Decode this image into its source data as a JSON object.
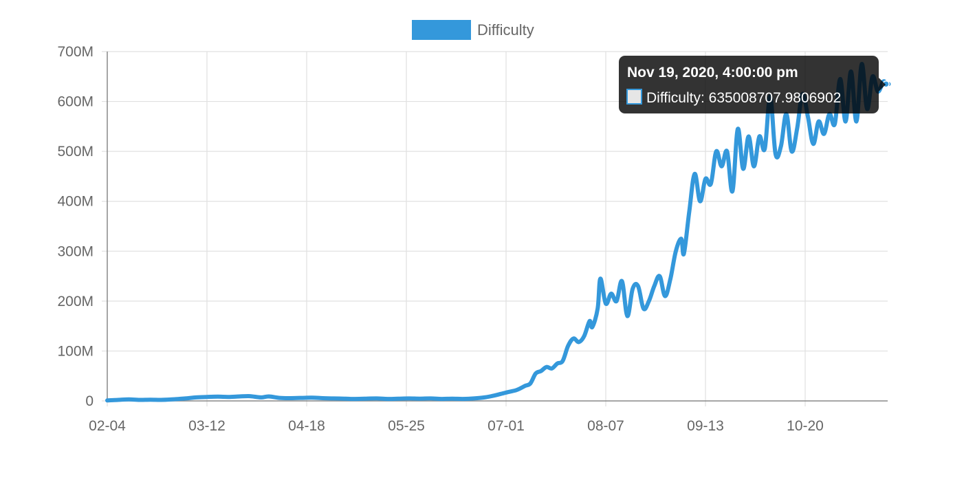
{
  "legend": {
    "label": "Difficulty",
    "color": "#3498db"
  },
  "tooltip": {
    "title": "Nov 19, 2020, 4:00:00 pm",
    "body": "Difficulty: 635008707.9806902",
    "swatch_fill": "#e6e6e6",
    "swatch_border": "#3498db",
    "background": "rgba(0,0,0,0.8)"
  },
  "chart_data": {
    "type": "line",
    "title": "",
    "xlabel": "",
    "ylabel": "",
    "x_tick_labels": [
      "02-04",
      "03-12",
      "04-18",
      "05-25",
      "07-01",
      "08-07",
      "09-13",
      "10-20"
    ],
    "y_tick_labels": [
      "0",
      "100M",
      "200M",
      "300M",
      "400M",
      "500M",
      "600M",
      "700M"
    ],
    "ylim": [
      0,
      700000000
    ],
    "grid": true,
    "legend_position": "top",
    "series": [
      {
        "name": "Difficulty",
        "color": "#3498db",
        "points": [
          [
            "2020-02-04",
            1000000
          ],
          [
            "2020-02-08",
            2000000
          ],
          [
            "2020-02-12",
            3000000
          ],
          [
            "2020-02-16",
            2000000
          ],
          [
            "2020-02-20",
            2500000
          ],
          [
            "2020-02-24",
            2000000
          ],
          [
            "2020-02-28",
            3000000
          ],
          [
            "2020-03-04",
            5000000
          ],
          [
            "2020-03-08",
            7000000
          ],
          [
            "2020-03-12",
            8000000
          ],
          [
            "2020-03-16",
            8500000
          ],
          [
            "2020-03-20",
            8000000
          ],
          [
            "2020-03-24",
            9000000
          ],
          [
            "2020-03-28",
            9500000
          ],
          [
            "2020-04-01",
            7000000
          ],
          [
            "2020-04-04",
            9000000
          ],
          [
            "2020-04-08",
            6000000
          ],
          [
            "2020-04-12",
            5500000
          ],
          [
            "2020-04-16",
            6000000
          ],
          [
            "2020-04-20",
            6500000
          ],
          [
            "2020-04-24",
            5500000
          ],
          [
            "2020-04-28",
            5000000
          ],
          [
            "2020-05-02",
            4500000
          ],
          [
            "2020-05-06",
            4000000
          ],
          [
            "2020-05-10",
            4500000
          ],
          [
            "2020-05-14",
            5000000
          ],
          [
            "2020-05-18",
            4000000
          ],
          [
            "2020-05-22",
            4500000
          ],
          [
            "2020-05-26",
            5000000
          ],
          [
            "2020-05-30",
            4500000
          ],
          [
            "2020-06-03",
            5000000
          ],
          [
            "2020-06-07",
            4000000
          ],
          [
            "2020-06-11",
            4500000
          ],
          [
            "2020-06-15",
            4000000
          ],
          [
            "2020-06-19",
            5000000
          ],
          [
            "2020-06-23",
            7000000
          ],
          [
            "2020-06-26",
            10000000
          ],
          [
            "2020-06-29",
            14000000
          ],
          [
            "2020-07-02",
            18000000
          ],
          [
            "2020-07-05",
            22000000
          ],
          [
            "2020-07-08",
            30000000
          ],
          [
            "2020-07-10",
            35000000
          ],
          [
            "2020-07-12",
            55000000
          ],
          [
            "2020-07-14",
            60000000
          ],
          [
            "2020-07-16",
            68000000
          ],
          [
            "2020-07-18",
            65000000
          ],
          [
            "2020-07-20",
            75000000
          ],
          [
            "2020-07-22",
            80000000
          ],
          [
            "2020-07-24",
            110000000
          ],
          [
            "2020-07-26",
            125000000
          ],
          [
            "2020-07-28",
            118000000
          ],
          [
            "2020-07-30",
            130000000
          ],
          [
            "2020-08-01",
            160000000
          ],
          [
            "2020-08-02",
            148000000
          ],
          [
            "2020-08-04",
            185000000
          ],
          [
            "2020-08-05",
            245000000
          ],
          [
            "2020-08-07",
            195000000
          ],
          [
            "2020-08-09",
            215000000
          ],
          [
            "2020-08-11",
            200000000
          ],
          [
            "2020-08-13",
            240000000
          ],
          [
            "2020-08-15",
            170000000
          ],
          [
            "2020-08-17",
            225000000
          ],
          [
            "2020-08-19",
            230000000
          ],
          [
            "2020-08-21",
            185000000
          ],
          [
            "2020-08-23",
            200000000
          ],
          [
            "2020-08-25",
            230000000
          ],
          [
            "2020-08-27",
            250000000
          ],
          [
            "2020-08-29",
            210000000
          ],
          [
            "2020-08-31",
            245000000
          ],
          [
            "2020-09-02",
            300000000
          ],
          [
            "2020-09-04",
            325000000
          ],
          [
            "2020-09-05",
            295000000
          ],
          [
            "2020-09-07",
            380000000
          ],
          [
            "2020-09-09",
            455000000
          ],
          [
            "2020-09-11",
            400000000
          ],
          [
            "2020-09-13",
            445000000
          ],
          [
            "2020-09-15",
            435000000
          ],
          [
            "2020-09-17",
            500000000
          ],
          [
            "2020-09-19",
            470000000
          ],
          [
            "2020-09-21",
            500000000
          ],
          [
            "2020-09-23",
            420000000
          ],
          [
            "2020-09-25",
            545000000
          ],
          [
            "2020-09-27",
            465000000
          ],
          [
            "2020-09-29",
            530000000
          ],
          [
            "2020-10-01",
            470000000
          ],
          [
            "2020-10-03",
            530000000
          ],
          [
            "2020-10-05",
            505000000
          ],
          [
            "2020-10-07",
            610000000
          ],
          [
            "2020-10-09",
            495000000
          ],
          [
            "2020-10-11",
            510000000
          ],
          [
            "2020-10-13",
            575000000
          ],
          [
            "2020-10-15",
            500000000
          ],
          [
            "2020-10-17",
            545000000
          ],
          [
            "2020-10-19",
            615000000
          ],
          [
            "2020-10-21",
            570000000
          ],
          [
            "2020-10-23",
            515000000
          ],
          [
            "2020-10-25",
            560000000
          ],
          [
            "2020-10-27",
            535000000
          ],
          [
            "2020-10-29",
            575000000
          ],
          [
            "2020-10-31",
            555000000
          ],
          [
            "2020-11-02",
            645000000
          ],
          [
            "2020-11-04",
            560000000
          ],
          [
            "2020-11-06",
            660000000
          ],
          [
            "2020-11-08",
            560000000
          ],
          [
            "2020-11-10",
            675000000
          ],
          [
            "2020-11-12",
            585000000
          ],
          [
            "2020-11-14",
            650000000
          ],
          [
            "2020-11-16",
            620000000
          ],
          [
            "2020-11-18",
            640000000
          ],
          [
            "2020-11-19",
            635008707.9806902
          ],
          [
            "2020-11-20",
            635000000
          ]
        ]
      }
    ],
    "highlighted_point": {
      "x": "2020-11-19",
      "y": 635008707.9806902
    }
  }
}
